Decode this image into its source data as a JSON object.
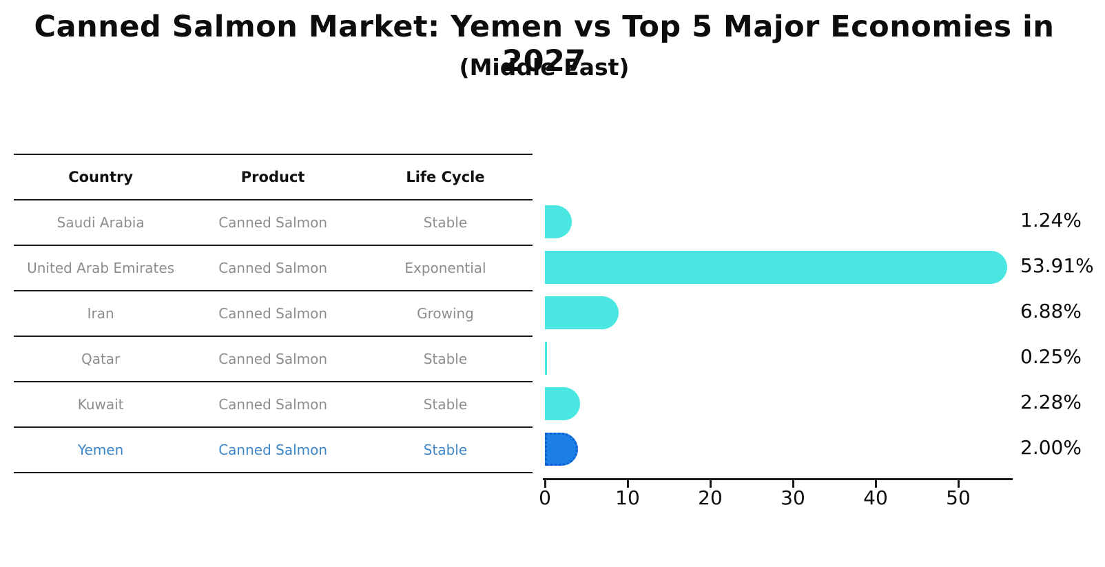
{
  "title": "Canned Salmon Market: Yemen vs Top 5 Major Economies in 2027",
  "subtitle": "(Middle East)",
  "table": {
    "headers": [
      "Country",
      "Product",
      "Life Cycle"
    ]
  },
  "chart_data": {
    "type": "bar",
    "orientation": "horizontal",
    "title": "Canned Salmon Market: Yemen vs Top 5 Major Economies in 2027",
    "subtitle": "(Middle East)",
    "categories": [
      "Saudi Arabia",
      "United Arab Emirates",
      "Iran",
      "Qatar",
      "Kuwait",
      "Yemen"
    ],
    "values": [
      1.24,
      53.91,
      6.88,
      0.25,
      2.28,
      2.0
    ],
    "rows": [
      {
        "country": "Saudi Arabia",
        "product": "Canned Salmon",
        "life_cycle": "Stable",
        "value": 1.24,
        "value_label": "1.24%",
        "highlight": false
      },
      {
        "country": "United Arab Emirates",
        "product": "Canned Salmon",
        "life_cycle": "Exponential",
        "value": 53.91,
        "value_label": "53.91%",
        "highlight": false
      },
      {
        "country": "Iran",
        "product": "Canned Salmon",
        "life_cycle": "Growing",
        "value": 6.88,
        "value_label": "6.88%",
        "highlight": false
      },
      {
        "country": "Qatar",
        "product": "Canned Salmon",
        "life_cycle": "Stable",
        "value": 0.25,
        "value_label": "0.25%",
        "highlight": false
      },
      {
        "country": "Kuwait",
        "product": "Canned Salmon",
        "life_cycle": "Stable",
        "value": 2.28,
        "value_label": "2.28%",
        "highlight": false
      },
      {
        "country": "Yemen",
        "product": "Canned Salmon",
        "life_cycle": "Stable",
        "value": 2.0,
        "value_label": "2.00%",
        "highlight": true
      }
    ],
    "x_ticks": [
      0,
      10,
      20,
      30,
      40,
      50
    ],
    "xlim": [
      0,
      56.6
    ],
    "grid": false,
    "legend": "none",
    "colors": {
      "bar": "#4AE6E2",
      "highlight_bar": "#1C7FE6",
      "highlight_bar_border": "#0d5fd0",
      "highlight_text": "#3D87C9",
      "row_text": "#8D8D8D",
      "axis": "#1a1a1a"
    }
  }
}
